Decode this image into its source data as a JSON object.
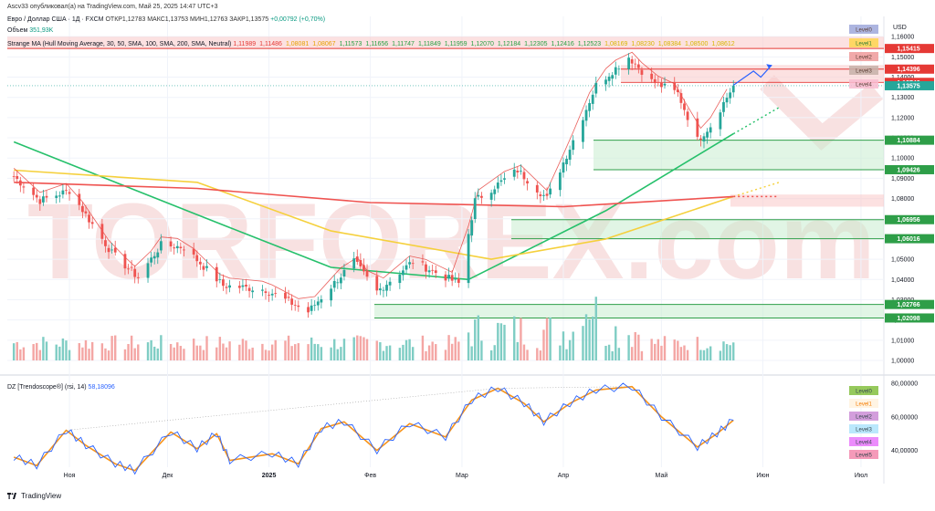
{
  "header": {
    "published": "Ascv33 опубликовал(а) на TradingView.com, Май 25, 2025 14:47 UTC+3",
    "symbol": "Евро / Доллар США · 1Д · FXCM",
    "open": "ОТКР1,12783",
    "high": "МАКС1,13753",
    "low": "МИН1,12763",
    "close": "ЗАКР1,13575",
    "change": "+0,00792 (+0,70%)",
    "volume_label": "Объем",
    "volume_value": "351,93K",
    "ma_label": "Strange MA (Hull Moving Average, 30, 50, SMA, 100, SMA, 200, SMA, Neutral)",
    "ma_values": [
      "1,11989",
      "1,11486",
      "1,08081",
      "1,08067",
      "1,11573",
      "1,11656",
      "1,11747",
      "1,11849",
      "1,11959",
      "1,12070",
      "1,12184",
      "1,12305",
      "1,12416",
      "1,12523",
      "1,08169",
      "1,08230",
      "1,08384",
      "1,08500",
      "1,08612"
    ],
    "osc_label": "DZ [Trendoscope®] (rsi, 14)",
    "osc_value": "58,18096"
  },
  "footer": {
    "brand": "TradingView"
  },
  "watermark": "TORFOREX.com",
  "colors": {
    "up": "#26a69a",
    "down": "#ef5350",
    "vol_up": "#7fcdc4",
    "vol_down": "#f4a6a4",
    "hma": "#e53935",
    "ma50": "#26c06b",
    "ma100": "#f5d03c",
    "ma200": "#ef5350",
    "zone_green": "#c8ecd0",
    "zone_red": "#f9c9c9",
    "zigzag": "#f7931a",
    "rsi": "#2962ff",
    "watermark": "#f3c9c9"
  },
  "chart_data": [
    {
      "type": "candlestick",
      "title": "Евро / Доллар США · 1Д · FXCM",
      "currency": "USD",
      "ylim": [
        1.0,
        1.17
      ],
      "y_ticks": [
        "1,16000",
        "1,15000",
        "1,14000",
        "1,13000",
        "1,12000",
        "1,11000",
        "1,10000",
        "1,09000",
        "1,08000",
        "1,07000",
        "1,06000",
        "1,05000",
        "1,04000",
        "1,03000",
        "1,02000",
        "1,01000",
        "1,00000"
      ],
      "x_ticks": [
        "Ноя",
        "Дек",
        "2025",
        "Фев",
        "Мар",
        "Апр",
        "Май",
        "Июн",
        "Июл"
      ],
      "last_price": "1,13575",
      "price_levels": [
        {
          "value": 1.15415,
          "label": "1,15415",
          "zone": "red",
          "side": "resistance"
        },
        {
          "value": 1.14396,
          "label": "1,14396",
          "zone": "red",
          "side": "resistance"
        },
        {
          "value": 1.13742,
          "label": "1,13742",
          "zone": "red",
          "side": "resistance"
        },
        {
          "value": 1.10884,
          "label": "1,10884",
          "zone": "green",
          "side": "support"
        },
        {
          "value": 1.09426,
          "label": "1,09426",
          "zone": "green",
          "side": "support"
        },
        {
          "value": 1.06956,
          "label": "1,06956",
          "zone": "green",
          "side": "support"
        },
        {
          "value": 1.06016,
          "label": "1,06016",
          "zone": "green",
          "side": "support"
        },
        {
          "value": 1.02766,
          "label": "1,02766",
          "zone": "green",
          "side": "support"
        },
        {
          "value": 1.02098,
          "label": "1,02098",
          "zone": "green",
          "side": "support"
        }
      ],
      "level_tags": [
        "Level0",
        "Level1",
        "Level2",
        "Level3",
        "Level4"
      ],
      "close_series_anchors": [
        {
          "date": "2024-10-15",
          "close": 1.091
        },
        {
          "date": "2024-10-23",
          "close": 1.079
        },
        {
          "date": "2024-11-01",
          "close": 1.084
        },
        {
          "date": "2024-11-06",
          "close": 1.072
        },
        {
          "date": "2024-11-14",
          "close": 1.053
        },
        {
          "date": "2024-11-22",
          "close": 1.041
        },
        {
          "date": "2024-11-29",
          "close": 1.057
        },
        {
          "date": "2024-12-06",
          "close": 1.056
        },
        {
          "date": "2024-12-18",
          "close": 1.037
        },
        {
          "date": "2024-12-31",
          "close": 1.035
        },
        {
          "date": "2025-01-13",
          "close": 1.024
        },
        {
          "date": "2025-01-27",
          "close": 1.049
        },
        {
          "date": "2025-02-03",
          "close": 1.034
        },
        {
          "date": "2025-02-14",
          "close": 1.049
        },
        {
          "date": "2025-02-28",
          "close": 1.038
        },
        {
          "date": "2025-03-05",
          "close": 1.079
        },
        {
          "date": "2025-03-18",
          "close": 1.094
        },
        {
          "date": "2025-03-27",
          "close": 1.08
        },
        {
          "date": "2025-04-03",
          "close": 1.105
        },
        {
          "date": "2025-04-11",
          "close": 1.136
        },
        {
          "date": "2025-04-21",
          "close": 1.15
        },
        {
          "date": "2025-04-28",
          "close": 1.138
        },
        {
          "date": "2025-05-06",
          "close": 1.132
        },
        {
          "date": "2025-05-12",
          "close": 1.109
        },
        {
          "date": "2025-05-16",
          "close": 1.116
        },
        {
          "date": "2025-05-23",
          "close": 1.1357
        }
      ],
      "moving_averages": [
        {
          "name": "MA50",
          "anchors": [
            {
              "date": "2024-10-15",
              "value": 1.108
            },
            {
              "date": "2024-12-10",
              "value": 1.072
            },
            {
              "date": "2025-01-20",
              "value": 1.046
            },
            {
              "date": "2025-03-03",
              "value": 1.04
            },
            {
              "date": "2025-04-14",
              "value": 1.074
            },
            {
              "date": "2025-05-23",
              "value": 1.112
            }
          ]
        },
        {
          "name": "MA100",
          "anchors": [
            {
              "date": "2024-10-15",
              "value": 1.094
            },
            {
              "date": "2024-12-10",
              "value": 1.088
            },
            {
              "date": "2025-01-20",
              "value": 1.064
            },
            {
              "date": "2025-03-10",
              "value": 1.05
            },
            {
              "date": "2025-04-14",
              "value": 1.06
            },
            {
              "date": "2025-05-23",
              "value": 1.081
            }
          ]
        },
        {
          "name": "MA200",
          "anchors": [
            {
              "date": "2024-10-15",
              "value": 1.088
            },
            {
              "date": "2024-12-10",
              "value": 1.085
            },
            {
              "date": "2025-02-01",
              "value": 1.078
            },
            {
              "date": "2025-04-01",
              "value": 1.076
            },
            {
              "date": "2025-05-23",
              "value": 1.081
            }
          ]
        }
      ]
    },
    {
      "type": "line",
      "title": "DZ [Trendoscope®] (rsi, 14)",
      "ylim": [
        30,
        80
      ],
      "y_ticks": [
        "80,00000",
        "60,00000",
        "40,00000"
      ],
      "last_value": 58.18096,
      "level_tags": [
        "Level0",
        "Level1",
        "Level2",
        "Level3",
        "Level4",
        "Level5"
      ],
      "series": [
        {
          "name": "rsi",
          "points": [
            {
              "date": "2024-10-15",
              "value": 36
            },
            {
              "date": "2024-10-22",
              "value": 31
            },
            {
              "date": "2024-10-31",
              "value": 52
            },
            {
              "date": "2024-11-06",
              "value": 43
            },
            {
              "date": "2024-11-15",
              "value": 32
            },
            {
              "date": "2024-11-21",
              "value": 28
            },
            {
              "date": "2024-12-02",
              "value": 51
            },
            {
              "date": "2024-12-10",
              "value": 41
            },
            {
              "date": "2024-12-16",
              "value": 50
            },
            {
              "date": "2024-12-20",
              "value": 34
            },
            {
              "date": "2025-01-02",
              "value": 38
            },
            {
              "date": "2025-01-10",
              "value": 32
            },
            {
              "date": "2025-01-17",
              "value": 53
            },
            {
              "date": "2025-01-24",
              "value": 57
            },
            {
              "date": "2025-02-03",
              "value": 40
            },
            {
              "date": "2025-02-13",
              "value": 56
            },
            {
              "date": "2025-02-24",
              "value": 48
            },
            {
              "date": "2025-03-04",
              "value": 70
            },
            {
              "date": "2025-03-12",
              "value": 77
            },
            {
              "date": "2025-03-20",
              "value": 68
            },
            {
              "date": "2025-03-26",
              "value": 57
            },
            {
              "date": "2025-04-03",
              "value": 68
            },
            {
              "date": "2025-04-11",
              "value": 76
            },
            {
              "date": "2025-04-22",
              "value": 78
            },
            {
              "date": "2025-05-01",
              "value": 60
            },
            {
              "date": "2025-05-12",
              "value": 42
            },
            {
              "date": "2025-05-18",
              "value": 50
            },
            {
              "date": "2025-05-23",
              "value": 58
            }
          ]
        }
      ]
    }
  ]
}
